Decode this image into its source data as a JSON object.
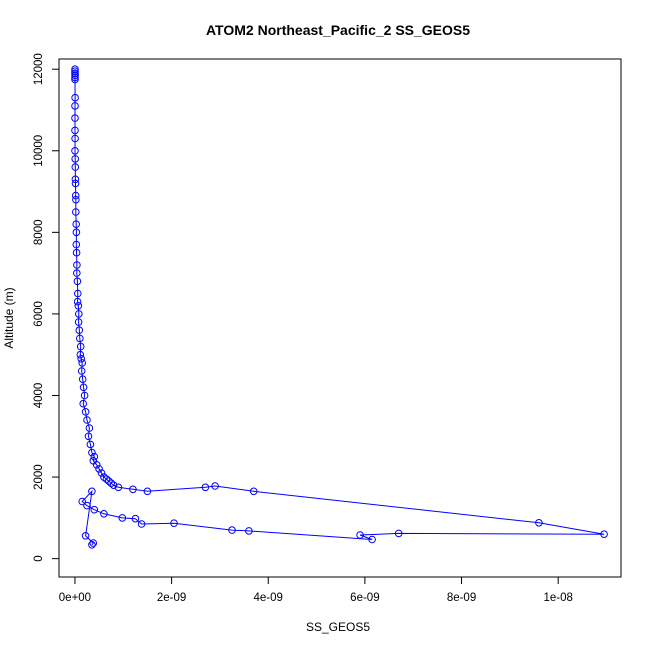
{
  "chart_data": {
    "type": "line",
    "title": "ATOM2 Northeast_Pacific_2 SS_GEOS5",
    "xlabel": "SS_GEOS5",
    "ylabel": "Altitude (m)",
    "xlim": [
      -3.3e-10,
      1.13e-08
    ],
    "ylim": [
      -450,
      12250
    ],
    "x_ticks": [
      0,
      2e-09,
      4e-09,
      6e-09,
      8e-09,
      1e-08
    ],
    "x_tick_labels": [
      "0e+00",
      "2e-09",
      "4e-09",
      "6e-09",
      "8e-09",
      "1e-08"
    ],
    "y_ticks": [
      0,
      2000,
      4000,
      6000,
      8000,
      10000,
      12000
    ],
    "y_tick_labels": [
      "0",
      "2000",
      "4000",
      "6000",
      "8000",
      "10000",
      "12000"
    ],
    "marker": "open-circle",
    "grid": false,
    "colors": {
      "series": "#0000ff",
      "axes": "#000000"
    },
    "series": [
      {
        "x": [
          2e-12,
          1e-12,
          2e-12,
          3e-12,
          1e-12,
          2e-12,
          3e-12,
          2e-12,
          1e-12,
          2e-12,
          3e-12,
          2e-12,
          5e-12,
          8e-12,
          1e-11,
          1.2e-11,
          1.5e-11,
          2e-11,
          1.8e-11,
          2.5e-11,
          3e-11,
          2.8e-11,
          3.5e-11,
          4e-11,
          3.8e-11,
          5e-11,
          6e-11,
          5.5e-11,
          7e-11,
          8e-11,
          7.5e-11,
          9e-11,
          1e-10,
          1.2e-10,
          1.1e-10,
          1.3e-10,
          1.5e-10,
          1.4e-10,
          1.6e-10,
          1.8e-10,
          2e-10,
          1.7e-10,
          2.2e-10,
          2.5e-10,
          3e-10,
          2.8e-10,
          3.2e-10,
          3.5e-10,
          4e-10,
          3.8e-10,
          4.5e-10,
          5e-10,
          5.5e-10,
          6e-10,
          6.5e-10,
          7e-10,
          7.5e-10,
          8e-10,
          9e-10,
          1.2e-09,
          1.5e-09,
          2.7e-09,
          2.9e-09,
          3.7e-09,
          9.6e-09,
          1.095e-08,
          6.7e-09,
          5.9e-09,
          6.15e-09,
          3.6e-09,
          3.25e-09,
          2.05e-09,
          1.38e-09,
          1.25e-09,
          9.8e-10,
          6e-10,
          4e-10,
          2.5e-10,
          1.5e-10,
          3.5e-10,
          2.2e-10,
          3.8e-10,
          3.5e-10
        ],
        "y": [
          12000,
          11950,
          11900,
          11850,
          11800,
          11750,
          11300,
          11100,
          10800,
          10500,
          10300,
          10000,
          9800,
          9600,
          9300,
          9200,
          8900,
          8800,
          8500,
          8200,
          8000,
          7700,
          7500,
          7200,
          7000,
          6800,
          6500,
          6300,
          6200,
          6000,
          5800,
          5600,
          5400,
          5200,
          5000,
          4900,
          4800,
          4600,
          4400,
          4200,
          4000,
          3800,
          3600,
          3400,
          3200,
          3000,
          2800,
          2600,
          2500,
          2400,
          2300,
          2200,
          2100,
          2000,
          1950,
          1900,
          1850,
          1800,
          1750,
          1700,
          1650,
          1750,
          1780,
          1650,
          880,
          600,
          620,
          580,
          470,
          680,
          700,
          870,
          850,
          980,
          1000,
          1100,
          1200,
          1300,
          1400,
          1650,
          560,
          380,
          340
        ]
      }
    ]
  }
}
